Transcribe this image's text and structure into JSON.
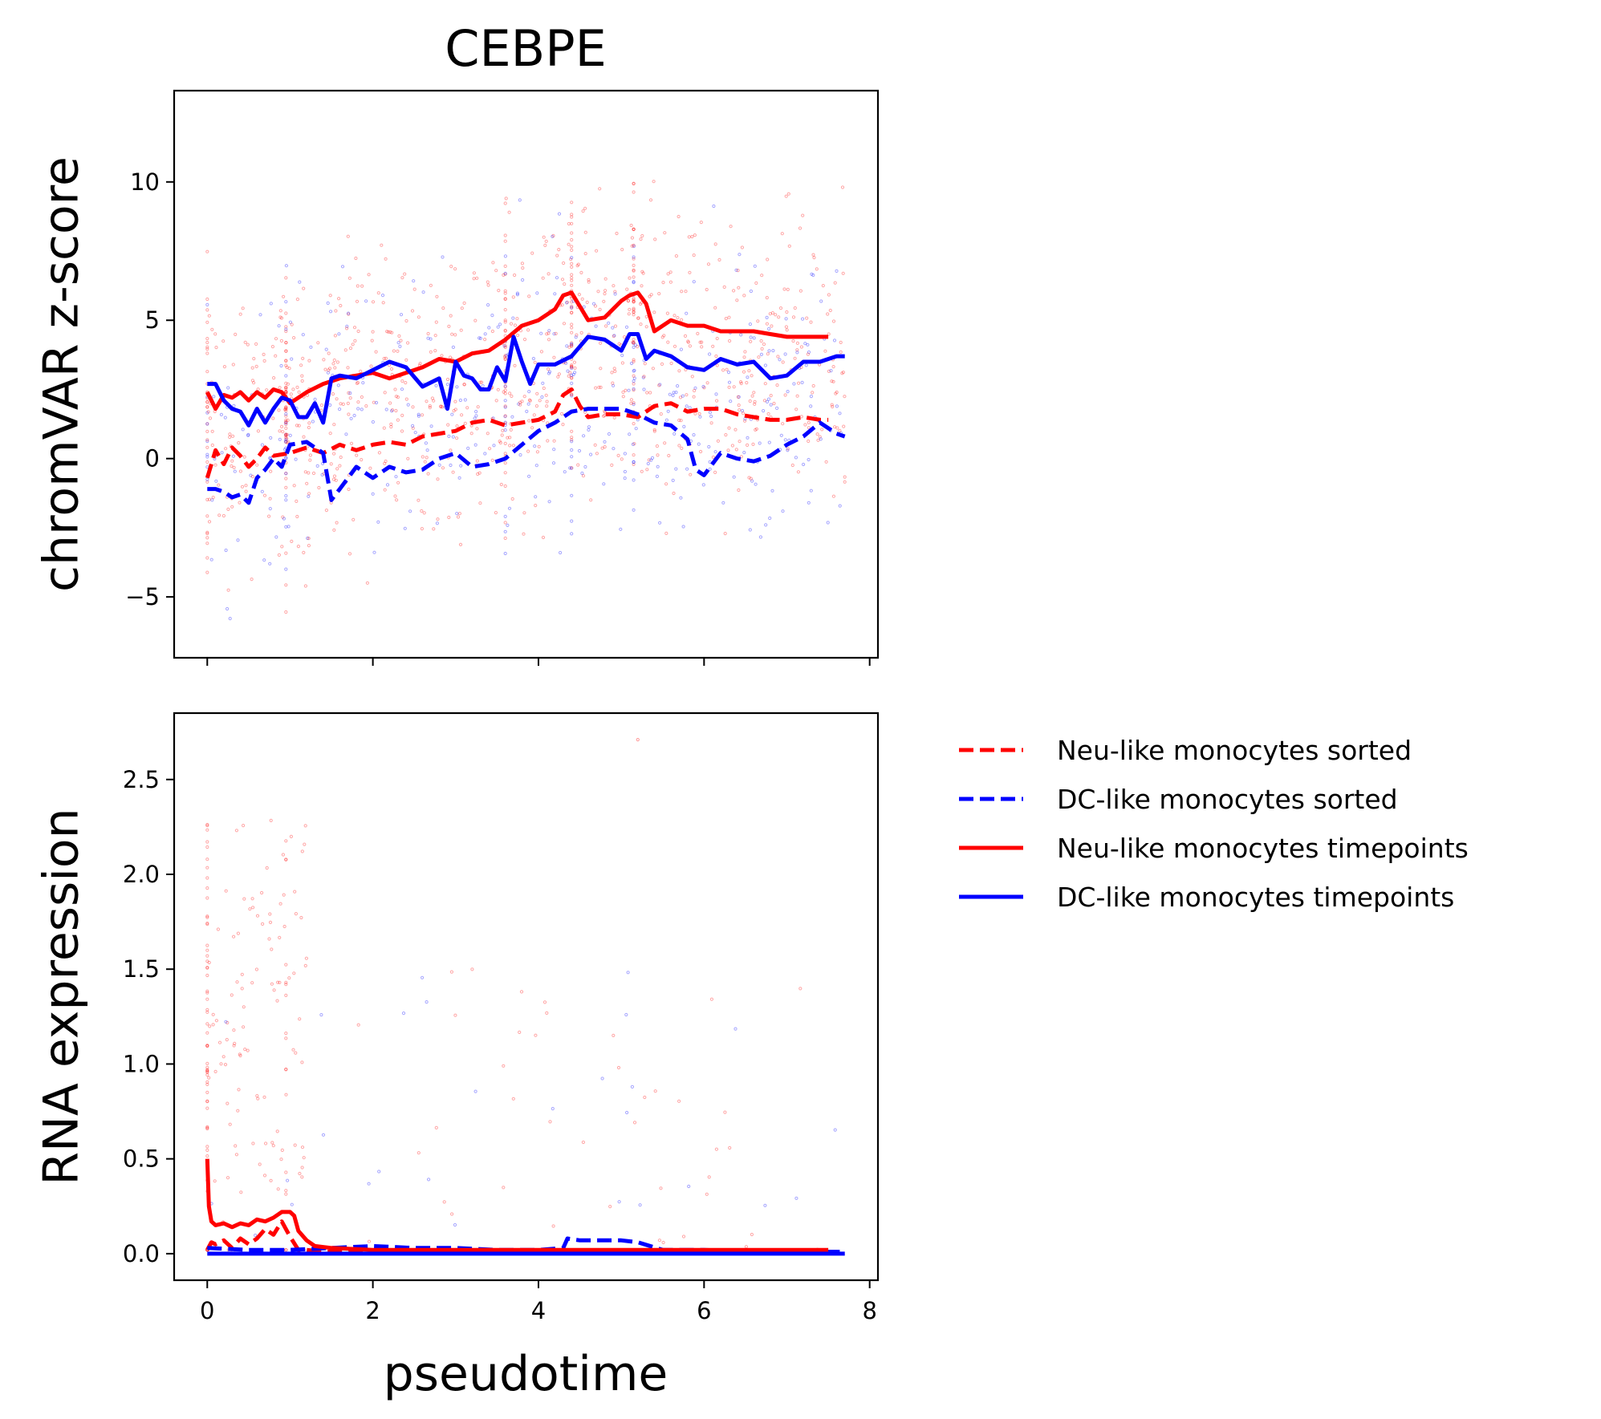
{
  "figure": {
    "title": "CEBPE",
    "xlabel": "pseudotime",
    "background": "#ffffff"
  },
  "colors": {
    "neu": "#ff0000",
    "dc": "#0000ff"
  },
  "legend": {
    "placement": "outside-right",
    "entries": [
      {
        "label": "Neu-like monocytes sorted",
        "color": "#ff0000",
        "style": "dashed"
      },
      {
        "label": "DC-like monocytes sorted",
        "color": "#0000ff",
        "style": "dashed"
      },
      {
        "label": "Neu-like monocytes timepoints",
        "color": "#ff0000",
        "style": "solid"
      },
      {
        "label": "DC-like monocytes timepoints",
        "color": "#0000ff",
        "style": "solid"
      }
    ]
  },
  "chart_data": [
    {
      "type": "line",
      "panel": "top",
      "title": "CEBPE",
      "xlabel": "",
      "ylabel": "chromVAR z-score",
      "xlim": [
        -0.4,
        8.1
      ],
      "ylim": [
        -7.2,
        13.3
      ],
      "xticks": [
        0,
        2,
        4,
        6,
        8
      ],
      "yticks": [
        -5,
        0,
        5,
        10
      ],
      "ytick_labels": [
        "−5",
        "0",
        "5",
        "10"
      ],
      "show_xtick_labels": false,
      "grid": false,
      "scatter": "faint red and blue cell points spanning z-scores about -6 to 12 across pseudotime 0 to 7.7",
      "series": [
        {
          "name": "Neu-like monocytes sorted",
          "color": "#ff0000",
          "style": "dashed",
          "x": [
            0,
            0.1,
            0.2,
            0.3,
            0.4,
            0.5,
            0.6,
            0.7,
            0.8,
            1.0,
            1.2,
            1.4,
            1.6,
            1.8,
            2.0,
            2.2,
            2.4,
            2.6,
            2.8,
            3.0,
            3.2,
            3.4,
            3.6,
            3.8,
            4.0,
            4.2,
            4.3,
            4.4,
            4.5,
            4.6,
            4.8,
            5.0,
            5.2,
            5.4,
            5.6,
            5.8,
            6.0,
            6.2,
            6.4,
            6.6,
            6.8,
            7.0,
            7.2,
            7.4,
            7.5
          ],
          "y": [
            -0.7,
            0.3,
            -0.2,
            0.4,
            0.1,
            -0.3,
            0.0,
            0.4,
            0.1,
            0.2,
            0.4,
            0.2,
            0.5,
            0.3,
            0.5,
            0.6,
            0.5,
            0.8,
            0.9,
            1.0,
            1.3,
            1.4,
            1.2,
            1.3,
            1.4,
            1.7,
            2.3,
            2.5,
            1.9,
            1.5,
            1.6,
            1.6,
            1.5,
            1.9,
            2.0,
            1.7,
            1.8,
            1.8,
            1.6,
            1.5,
            1.4,
            1.4,
            1.5,
            1.4,
            1.4
          ]
        },
        {
          "name": "DC-like monocytes sorted",
          "color": "#0000ff",
          "style": "dashed",
          "x": [
            0,
            0.1,
            0.2,
            0.3,
            0.4,
            0.5,
            0.6,
            0.7,
            0.8,
            0.9,
            1.0,
            1.2,
            1.4,
            1.5,
            1.6,
            1.8,
            2.0,
            2.2,
            2.4,
            2.6,
            2.8,
            3.0,
            3.2,
            3.4,
            3.6,
            3.8,
            4.0,
            4.2,
            4.4,
            4.6,
            4.8,
            5.0,
            5.2,
            5.4,
            5.6,
            5.8,
            5.9,
            6.0,
            6.2,
            6.4,
            6.6,
            6.8,
            7.0,
            7.2,
            7.4,
            7.6,
            7.7
          ],
          "y": [
            -1.1,
            -1.1,
            -1.2,
            -1.4,
            -1.3,
            -1.6,
            -0.7,
            -0.4,
            0.0,
            -0.3,
            0.5,
            0.6,
            0.2,
            -1.5,
            -1.1,
            -0.3,
            -0.7,
            -0.3,
            -0.5,
            -0.4,
            0.0,
            0.2,
            -0.3,
            -0.2,
            0.0,
            0.5,
            1.0,
            1.3,
            1.7,
            1.8,
            1.8,
            1.8,
            1.6,
            1.3,
            1.2,
            0.7,
            -0.4,
            -0.6,
            0.2,
            0.0,
            -0.1,
            0.1,
            0.5,
            0.8,
            1.3,
            0.9,
            0.8
          ]
        },
        {
          "name": "Neu-like monocytes timepoints",
          "color": "#ff0000",
          "style": "solid",
          "x": [
            0,
            0.1,
            0.2,
            0.3,
            0.4,
            0.5,
            0.6,
            0.7,
            0.8,
            0.9,
            1.0,
            1.2,
            1.4,
            1.6,
            1.8,
            2.0,
            2.2,
            2.4,
            2.6,
            2.8,
            3.0,
            3.2,
            3.4,
            3.6,
            3.8,
            4.0,
            4.2,
            4.3,
            4.4,
            4.5,
            4.6,
            4.8,
            5.0,
            5.1,
            5.2,
            5.3,
            5.4,
            5.6,
            5.8,
            6.0,
            6.2,
            6.4,
            6.6,
            6.8,
            7.0,
            7.2,
            7.5
          ],
          "y": [
            2.4,
            1.8,
            2.3,
            2.2,
            2.4,
            2.1,
            2.4,
            2.2,
            2.5,
            2.4,
            2.0,
            2.4,
            2.7,
            2.9,
            3.0,
            3.1,
            2.9,
            3.1,
            3.3,
            3.6,
            3.5,
            3.8,
            3.9,
            4.3,
            4.8,
            5.0,
            5.4,
            5.9,
            6.0,
            5.5,
            5.0,
            5.1,
            5.7,
            5.9,
            6.0,
            5.6,
            4.6,
            5.0,
            4.8,
            4.8,
            4.6,
            4.6,
            4.6,
            4.5,
            4.4,
            4.4,
            4.4
          ]
        },
        {
          "name": "DC-like monocytes timepoints",
          "color": "#0000ff",
          "style": "solid",
          "x": [
            0,
            0.1,
            0.2,
            0.3,
            0.4,
            0.5,
            0.6,
            0.7,
            0.8,
            0.9,
            1.0,
            1.1,
            1.2,
            1.3,
            1.4,
            1.5,
            1.6,
            1.8,
            2.0,
            2.2,
            2.4,
            2.6,
            2.8,
            2.9,
            3.0,
            3.1,
            3.2,
            3.3,
            3.4,
            3.5,
            3.6,
            3.7,
            3.8,
            3.9,
            4.0,
            4.2,
            4.4,
            4.6,
            4.8,
            5.0,
            5.1,
            5.2,
            5.3,
            5.4,
            5.6,
            5.8,
            6.0,
            6.2,
            6.4,
            6.6,
            6.8,
            7.0,
            7.2,
            7.4,
            7.6,
            7.7
          ],
          "y": [
            2.7,
            2.7,
            2.1,
            1.8,
            1.7,
            1.2,
            1.8,
            1.3,
            1.8,
            2.2,
            2.1,
            1.5,
            1.5,
            2.0,
            1.3,
            2.9,
            3.0,
            2.9,
            3.2,
            3.5,
            3.3,
            2.6,
            2.9,
            1.8,
            3.5,
            3.0,
            2.9,
            2.5,
            2.5,
            3.3,
            2.8,
            4.4,
            3.5,
            2.7,
            3.4,
            3.4,
            3.7,
            4.4,
            4.3,
            3.9,
            4.5,
            4.5,
            3.6,
            3.9,
            3.7,
            3.3,
            3.2,
            3.6,
            3.4,
            3.5,
            2.9,
            3.0,
            3.5,
            3.5,
            3.7,
            3.7
          ]
        }
      ]
    },
    {
      "type": "line",
      "panel": "bottom",
      "title": "",
      "xlabel": "pseudotime",
      "ylabel": "RNA expression",
      "xlim": [
        -0.4,
        8.1
      ],
      "ylim": [
        -0.14,
        2.85
      ],
      "xticks": [
        0,
        2,
        4,
        6,
        8
      ],
      "yticks": [
        0.0,
        0.5,
        1.0,
        1.5,
        2.0,
        2.5
      ],
      "ytick_labels": [
        "0.0",
        "0.5",
        "1.0",
        "1.5",
        "2.0",
        "2.5"
      ],
      "show_xtick_labels": true,
      "grid": false,
      "scatter": "faint red and blue cell points, dense near pseudotime 0 to 1 up to about 2.3, with one point near 2.7 at pseudotime 5.2",
      "series": [
        {
          "name": "Neu-like monocytes sorted",
          "color": "#ff0000",
          "style": "dashed",
          "x": [
            0,
            0.05,
            0.1,
            0.2,
            0.3,
            0.4,
            0.5,
            0.6,
            0.7,
            0.8,
            0.9,
            1.0,
            1.1,
            1.2,
            1.4,
            1.6,
            2.0,
            3.0,
            4.0,
            5.0,
            6.0,
            7.0,
            7.5
          ],
          "y": [
            0.02,
            0.06,
            0.05,
            0.07,
            0.03,
            0.08,
            0.05,
            0.08,
            0.13,
            0.1,
            0.17,
            0.09,
            0.02,
            0.02,
            0.01,
            0.01,
            0.01,
            0.01,
            0.01,
            0.01,
            0.01,
            0.01,
            0.01
          ]
        },
        {
          "name": "DC-like monocytes sorted",
          "color": "#0000ff",
          "style": "dashed",
          "x": [
            0,
            0.5,
            1.0,
            2.0,
            2.5,
            3.0,
            3.5,
            4.0,
            4.3,
            4.35,
            4.5,
            5.0,
            5.2,
            5.5,
            6.0,
            6.5,
            7.0,
            7.7
          ],
          "y": [
            0.03,
            0.02,
            0.02,
            0.04,
            0.03,
            0.03,
            0.02,
            0.02,
            0.03,
            0.08,
            0.07,
            0.07,
            0.06,
            0.02,
            0.02,
            0.01,
            0.01,
            0.01
          ]
        },
        {
          "name": "Neu-like monocytes timepoints",
          "color": "#ff0000",
          "style": "solid",
          "x": [
            0,
            0.02,
            0.05,
            0.1,
            0.2,
            0.3,
            0.4,
            0.5,
            0.6,
            0.7,
            0.8,
            0.9,
            1.0,
            1.05,
            1.1,
            1.2,
            1.3,
            1.5,
            2.0,
            3.0,
            4.0,
            5.0,
            6.0,
            7.0,
            7.5
          ],
          "y": [
            0.5,
            0.25,
            0.17,
            0.15,
            0.16,
            0.14,
            0.16,
            0.15,
            0.18,
            0.17,
            0.19,
            0.22,
            0.22,
            0.2,
            0.12,
            0.07,
            0.04,
            0.03,
            0.02,
            0.02,
            0.02,
            0.02,
            0.02,
            0.02,
            0.02
          ]
        },
        {
          "name": "DC-like monocytes timepoints",
          "color": "#0000ff",
          "style": "solid",
          "x": [
            0,
            1.0,
            2.0,
            3.0,
            4.0,
            5.0,
            6.0,
            7.0,
            7.7
          ],
          "y": [
            0.0,
            0.0,
            0.0,
            0.0,
            0.0,
            0.0,
            0.0,
            0.0,
            0.0
          ]
        }
      ]
    }
  ]
}
